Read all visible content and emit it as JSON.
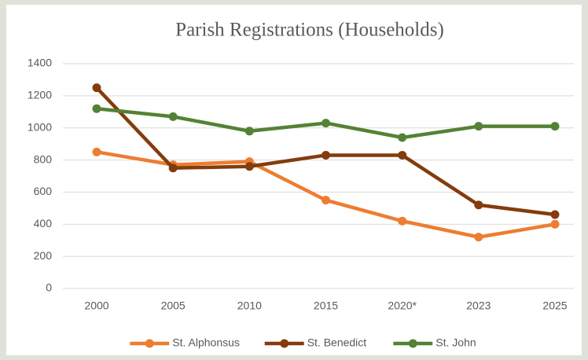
{
  "chart_data": {
    "type": "line",
    "title": "Parish Registrations (Households)",
    "categories": [
      "2000",
      "2005",
      "2010",
      "2015",
      "2020*",
      "2023",
      "2025"
    ],
    "series": [
      {
        "name": "St. Alphonsus",
        "color": "#ed7d31",
        "values": [
          850,
          770,
          790,
          550,
          420,
          320,
          400
        ]
      },
      {
        "name": "St. Benedict",
        "color": "#843c0c",
        "values": [
          1250,
          750,
          760,
          830,
          830,
          520,
          460
        ]
      },
      {
        "name": "St. John",
        "color": "#548235",
        "values": [
          1120,
          1070,
          980,
          1030,
          940,
          1010,
          1010
        ]
      }
    ],
    "ylim": [
      0,
      1400
    ],
    "yticks": [
      0,
      200,
      400,
      600,
      800,
      1000,
      1200,
      1400
    ],
    "grid": true,
    "legend": "bottom"
  }
}
